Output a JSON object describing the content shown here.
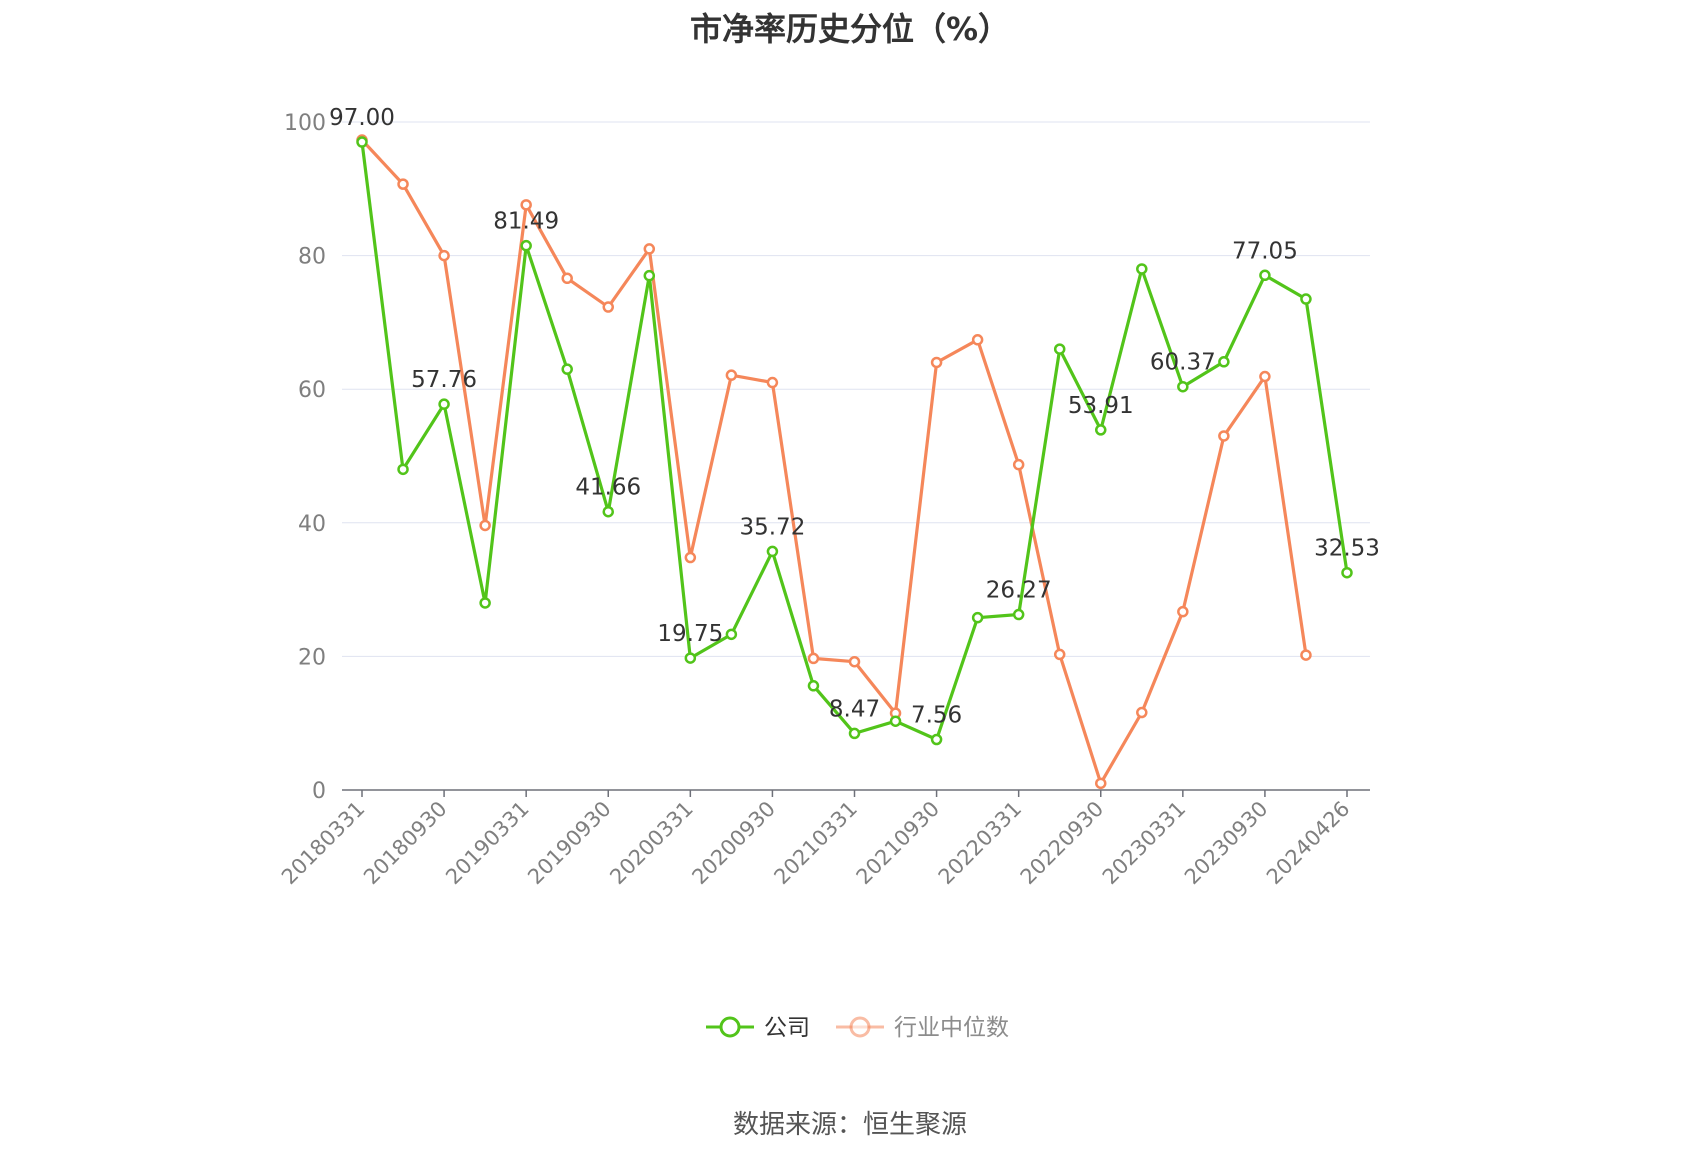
{
  "colors": {
    "company": "#52c41a",
    "industry": "#f5875a",
    "grid": "#dfe3f0",
    "axis": "#6e7079",
    "legend_inactive_text": "#8c8c8c"
  },
  "source_text": "数据来源：恒生聚源",
  "chart_data": {
    "type": "line",
    "title": "市净率历史分位（%）",
    "ylim": [
      0,
      100
    ],
    "y_ticks": [
      0,
      20,
      40,
      60,
      80,
      100
    ],
    "grid": true,
    "legend_position": "bottom-center",
    "x_tick_labels": [
      "20180331",
      "20180930",
      "20190331",
      "20190930",
      "20200331",
      "20200930",
      "20210331",
      "20210930",
      "20220331",
      "20220930",
      "20230331",
      "20230930",
      "20240426"
    ],
    "x": [
      "20180331",
      "20180630",
      "20180930",
      "20181231",
      "20190331",
      "20190630",
      "20190930",
      "20191231",
      "20200331",
      "20200630",
      "20200930",
      "20201231",
      "20210331",
      "20210630",
      "20210930",
      "20211231",
      "20220331",
      "20220630",
      "20220930",
      "20221231",
      "20230331",
      "20230630",
      "20230930",
      "20231231",
      "20240426"
    ],
    "series": [
      {
        "name": "公司",
        "values": [
          97.0,
          48.0,
          57.76,
          28.0,
          81.49,
          63.0,
          41.66,
          77.0,
          19.75,
          23.3,
          35.72,
          15.6,
          8.47,
          10.3,
          7.56,
          25.8,
          26.27,
          66.0,
          53.91,
          78.0,
          60.37,
          64.1,
          77.05,
          73.5,
          32.53
        ],
        "labels": [
          "97.00",
          "",
          "57.76",
          "",
          "81.49",
          "",
          "41.66",
          "",
          "19.75",
          "",
          "35.72",
          "",
          "8.47",
          "",
          "7.56",
          "",
          "26.27",
          "",
          "53.91",
          "",
          "60.37",
          "",
          "77.05",
          "",
          "32.53"
        ]
      },
      {
        "name": "行业中位数",
        "values": [
          97.3,
          90.7,
          80.0,
          39.6,
          87.6,
          76.6,
          72.3,
          81.0,
          34.8,
          62.1,
          61.0,
          19.7,
          19.2,
          11.5,
          64.0,
          67.4,
          48.7,
          20.3,
          1.0,
          11.6,
          26.7,
          53.0,
          61.9,
          20.2,
          null
        ]
      }
    ]
  }
}
